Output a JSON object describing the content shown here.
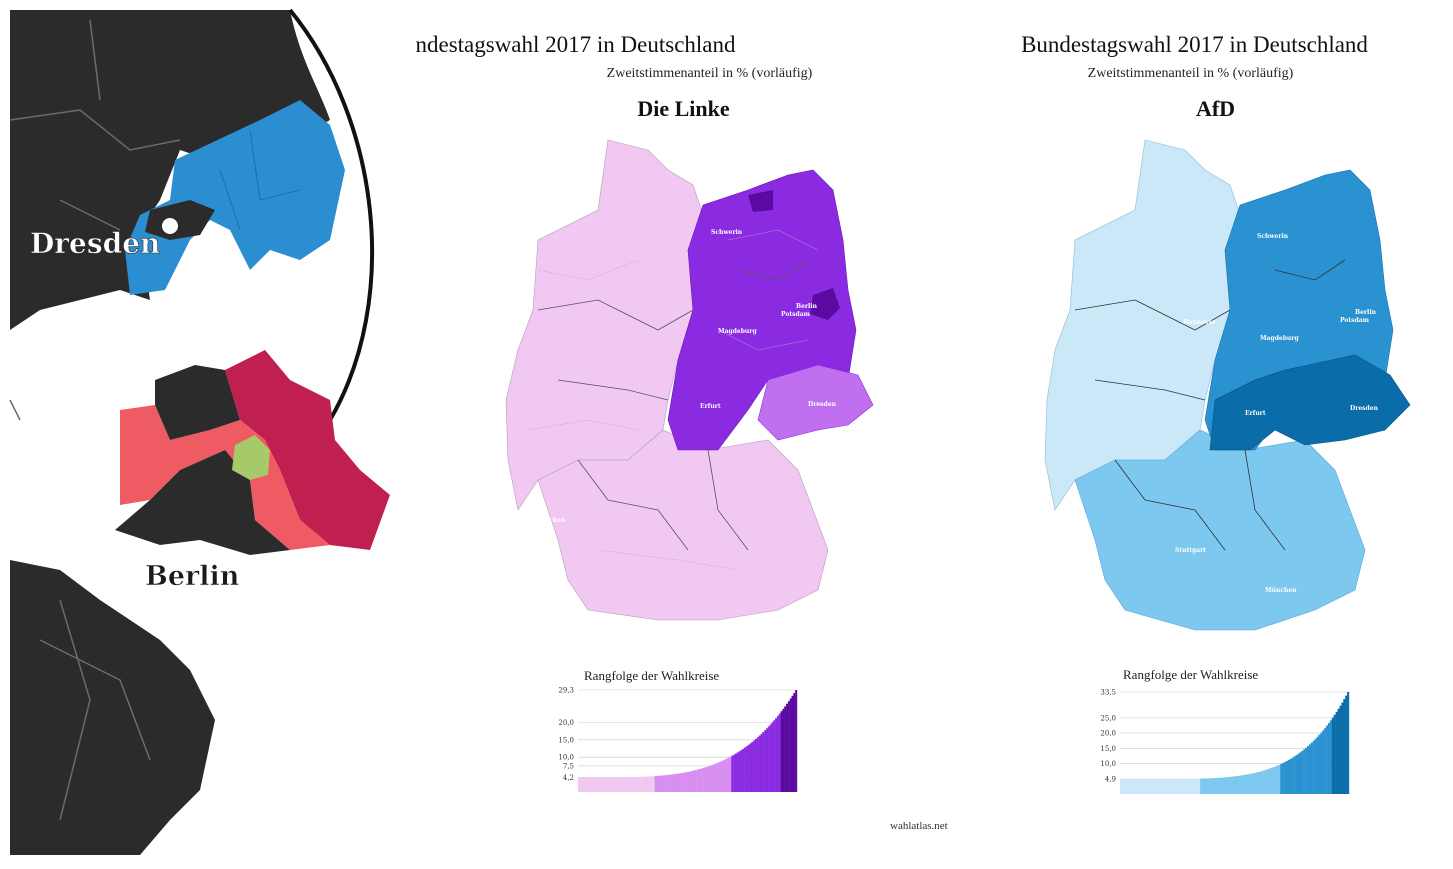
{
  "left": {
    "cities": [
      {
        "name": "Dresden"
      },
      {
        "name": "Berlin"
      }
    ],
    "colors": {
      "dark": "#2b2b2b",
      "blue": "#2b8ed0",
      "crimson": "#bf2050",
      "coral": "#ef5b63",
      "green": "#a6c96a"
    }
  },
  "middle": {
    "title": "ndestagswahl 2017 in Deutschland",
    "subtitle": "Zweitstimmenanteil in % (vorläufig)",
    "party": "Die Linke",
    "cities": [
      "Schwerin",
      "Berlin",
      "Potsdam",
      "Magdeburg",
      "Erfurt",
      "Dresden",
      "Saarbrücken"
    ],
    "rank_title": "Rangfolge der Wahlkreise",
    "ticks": [
      "29,3",
      "20,0",
      "15,0",
      "10,0",
      "7,5",
      "4,2"
    ],
    "credit": "wahlatlas.net",
    "colors": {
      "light": "#f1c8f1",
      "mid": "#d88ef0",
      "dark": "#8a2be2",
      "darkest": "#5a0aa0"
    }
  },
  "right": {
    "title": "Bundestagswahl 2017 in Deutschland",
    "subtitle": "Zweitstimmenanteil in % (vorläufig)",
    "party": "AfD",
    "cities": [
      "Schwerin",
      "Hannover",
      "Berlin",
      "Potsdam",
      "Magdeburg",
      "Erfurt",
      "Dresden",
      "Stuttgart",
      "München"
    ],
    "rank_title": "Rangfolge der Wahlkreise",
    "ticks": [
      "33,5",
      "25,0",
      "20,0",
      "15,0",
      "10,0",
      "4,9"
    ],
    "colors": {
      "light": "#cbe8f8",
      "mid": "#7cc8ee",
      "dark": "#2a92d0",
      "darkest": "#0a6ca8"
    }
  }
}
